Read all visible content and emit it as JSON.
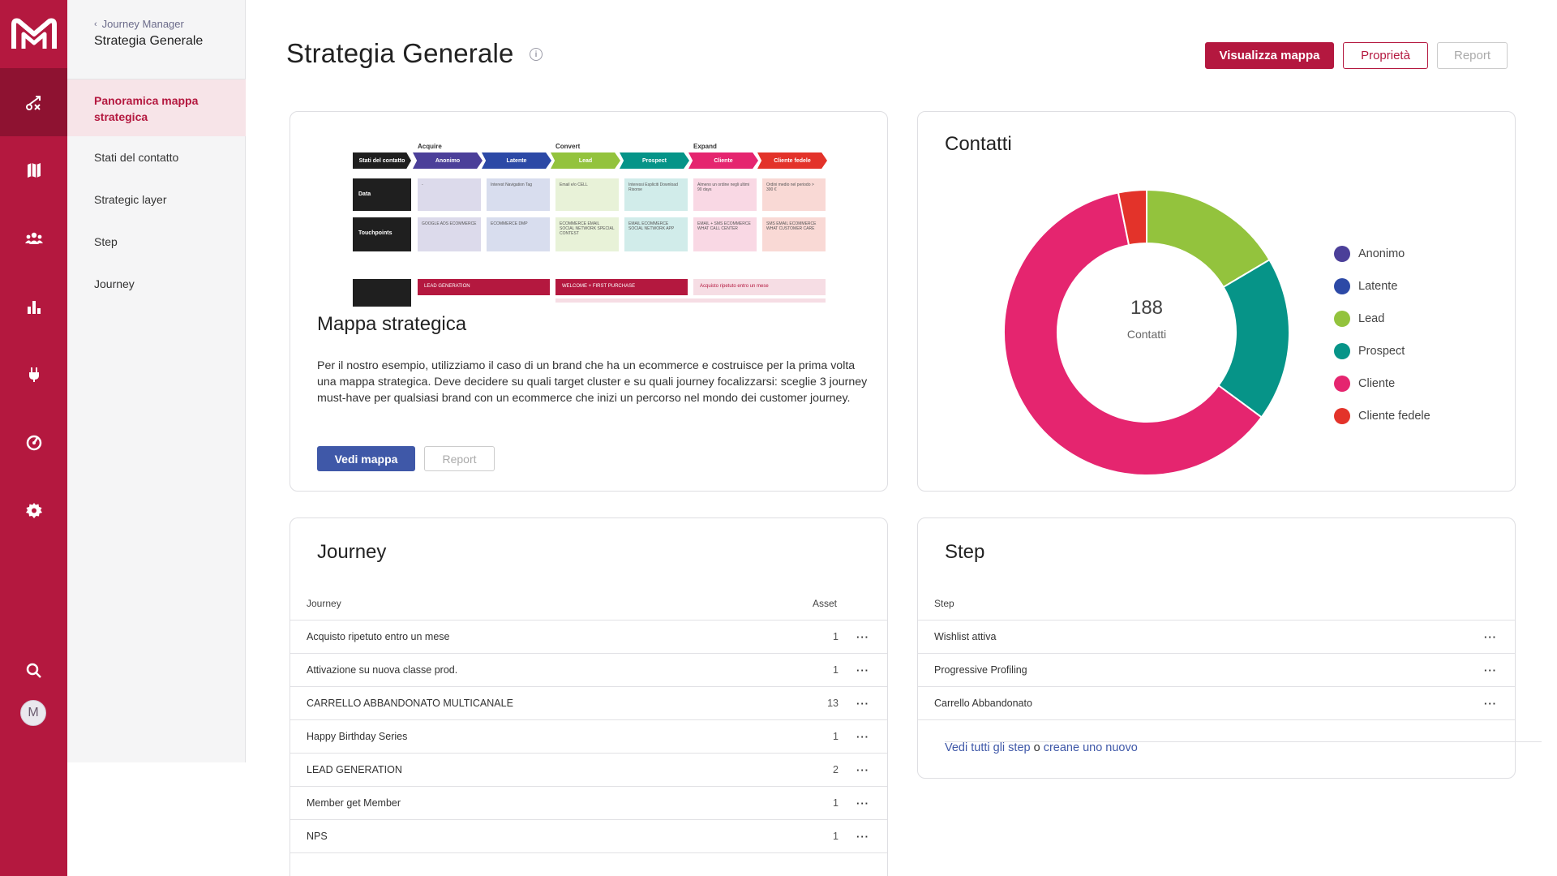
{
  "subnav": {
    "back_label": "Journey Manager",
    "title": "Strategia Generale",
    "items": [
      {
        "label": "Panoramica mappa strategica"
      },
      {
        "label": "Stati del contatto"
      },
      {
        "label": "Strategic layer"
      },
      {
        "label": "Step"
      },
      {
        "label": "Journey"
      }
    ]
  },
  "header": {
    "title": "Strategia Generale",
    "btn_map": "Visualizza mappa",
    "btn_props": "Proprietà",
    "btn_report": "Report"
  },
  "map_card": {
    "title": "Mappa strategica",
    "description": "Per il nostro esempio, utilizziamo il caso di un brand che ha un ecommerce e costruisce per la prima volta una mappa strategica. Deve decidere su quali target cluster e su quali journey focalizzarsi: sceglie 3 journey must-have per qualsiasi brand con un ecommerce che inizi un percorso nel mondo dei customer journey.",
    "btn_view": "Vedi mappa",
    "btn_report": "Report",
    "thumbnail": {
      "phases": [
        "Acquire",
        "Convert",
        "Expand"
      ],
      "header": "Stati del contatto",
      "stages": [
        "Anonimo",
        "Latente",
        "Lead",
        "Prospect",
        "Cliente",
        "Cliente fedele"
      ],
      "rows": [
        "Data",
        "Touchpoints"
      ],
      "data_cells": [
        "-",
        "Interest Navigation Tag",
        "Email e/o CELL",
        "Interessi Espliciti Download Risorse",
        "Almeno un ordine negli ultimi 90 days",
        "Ordini medio nel periodo > 300 €"
      ],
      "touch_cells": [
        "GOOGLE ADS ECOMMERCE",
        "ECOMMERCE DMP",
        "ECOMMERCE EMAIL SOCIAL NETWORK SPECIAL CONTEST",
        "EMAIL ECOMMERCE SOCIAL NETWORK APP",
        "EMAIL + SMS ECOMMERCE WHAT CALL CENTER",
        "SMS EMAIL ECOMMERCE WHAT CUSTOMER CARE"
      ],
      "journeys": [
        "LEAD GENERATION",
        "WELCOME + FIRST PURCHASE",
        "Acquisto ripetuto entro un mese"
      ]
    }
  },
  "contacts_card": {
    "title": "Contatti",
    "total": "188",
    "total_label": "Contatti"
  },
  "chart_data": {
    "type": "pie",
    "title": "Contatti",
    "center_value": 188,
    "center_label": "Contatti",
    "series": [
      {
        "name": "Anonimo",
        "value": 0,
        "color": "#4b3f99"
      },
      {
        "name": "Latente",
        "value": 0,
        "color": "#2c49a6"
      },
      {
        "name": "Lead",
        "value": 31,
        "color": "#93c33d"
      },
      {
        "name": "Prospect",
        "value": 35,
        "color": "#069488"
      },
      {
        "name": "Cliente",
        "value": 116,
        "color": "#e5256f"
      },
      {
        "name": "Cliente fedele",
        "value": 6,
        "color": "#e3332a"
      }
    ]
  },
  "journey_card": {
    "title": "Journey",
    "col_name": "Journey",
    "col_asset": "Asset",
    "rows": [
      {
        "name": "Acquisto ripetuto entro un mese",
        "asset": "1"
      },
      {
        "name": "Attivazione su nuova classe prod.",
        "asset": "1"
      },
      {
        "name": "CARRELLO ABBANDONATO MULTICANALE",
        "asset": "13"
      },
      {
        "name": "Happy Birthday Series",
        "asset": "1"
      },
      {
        "name": "LEAD GENERATION",
        "asset": "2"
      },
      {
        "name": "Member get Member",
        "asset": "1"
      },
      {
        "name": "NPS",
        "asset": "1"
      }
    ]
  },
  "step_card": {
    "title": "Step",
    "col_name": "Step",
    "rows": [
      {
        "name": "Wishlist attiva"
      },
      {
        "name": "Progressive Profiling"
      },
      {
        "name": "Carrello Abbandonato"
      }
    ],
    "footer_link1": "Vedi tutti gli step",
    "footer_sep": " o ",
    "footer_link2": "creane uno nuovo"
  },
  "user": {
    "initial": "M"
  }
}
